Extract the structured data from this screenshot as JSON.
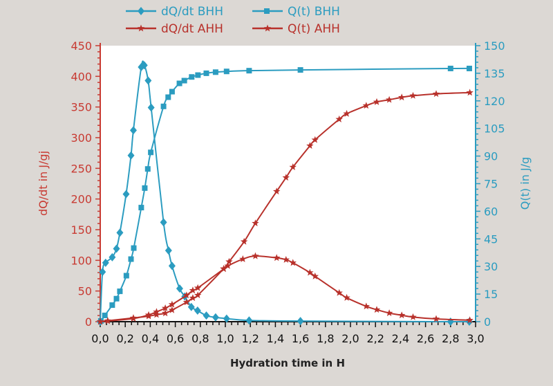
{
  "chart_data": {
    "type": "line",
    "xlabel": "Hydration time in H",
    "ylabel_left": "dQ/dt in J/gj",
    "ylabel_right": "Q(t) in J/g",
    "xlim": [
      0,
      3.0
    ],
    "ylim_left": [
      0,
      450
    ],
    "ylim_right": [
      0,
      150
    ],
    "x_ticks": [
      "0,0",
      "0,2",
      "0,4",
      "0,6",
      "0,8",
      "1,0",
      "1,2",
      "1,4",
      "1,6",
      "1,8",
      "2,0",
      "2,2",
      "2,4",
      "2,6",
      "2,8",
      "3,0"
    ],
    "y_left_ticks": [
      "0",
      "50",
      "100",
      "150",
      "200",
      "250",
      "300",
      "350",
      "400",
      "450"
    ],
    "y_right_ticks": [
      "0",
      "15",
      "30",
      "45",
      "60",
      "75",
      "90",
      "105",
      "120",
      "135",
      "150"
    ],
    "legend_placement": "top-center",
    "colors": {
      "bhh": "#2b9cc0",
      "ahh": "#b8312b",
      "left_axis": "#c83a32",
      "right_axis": "#2b9cc0"
    },
    "series": [
      {
        "name": "dQ/dt BHH",
        "axis": "left",
        "marker": "diamond",
        "color": "#2b9cc0",
        "x": [
          0.0,
          0.018,
          0.043,
          0.096,
          0.13,
          0.157,
          0.207,
          0.246,
          0.265,
          0.328,
          0.352,
          0.383,
          0.407,
          0.506,
          0.546,
          0.574,
          0.635,
          0.676,
          0.728,
          0.778,
          0.848,
          0.922,
          1.01,
          1.19,
          1.6,
          2.8,
          2.95
        ],
        "y": [
          0,
          81,
          96,
          105,
          119,
          145,
          208,
          271,
          312,
          415,
          418,
          393,
          349,
          162,
          116,
          91,
          54,
          41,
          24,
          18,
          10,
          7,
          5,
          2,
          1,
          0,
          0
        ]
      },
      {
        "name": "Q(t) BHH",
        "axis": "right",
        "marker": "square",
        "color": "#2b9cc0",
        "x": [
          0.005,
          0.037,
          0.096,
          0.13,
          0.157,
          0.209,
          0.246,
          0.268,
          0.328,
          0.356,
          0.38,
          0.404,
          0.506,
          0.543,
          0.574,
          0.633,
          0.672,
          0.731,
          0.781,
          0.848,
          0.922,
          1.01,
          1.19,
          1.6,
          2.8,
          2.95
        ],
        "y": [
          0.4,
          3.4,
          9,
          12.5,
          16.5,
          25,
          34,
          40,
          62,
          72.6,
          83,
          92,
          117,
          122,
          125,
          129.5,
          131,
          133,
          134,
          135,
          135.6,
          136,
          136.4,
          136.8,
          137.6,
          137.6
        ]
      },
      {
        "name": "dQ/dt AHH",
        "axis": "left",
        "marker": "star",
        "color": "#b8312b",
        "x": [
          0.0,
          0.06,
          0.265,
          0.387,
          0.45,
          0.52,
          0.574,
          0.69,
          0.74,
          0.78,
          0.987,
          1.02,
          1.14,
          1.24,
          1.41,
          1.485,
          1.54,
          1.676,
          1.717,
          1.91,
          1.97,
          2.126,
          2.21,
          2.31,
          2.41,
          2.5,
          2.685,
          2.954
        ],
        "y": [
          0,
          1,
          5,
          11,
          16,
          22,
          28,
          43,
          51,
          55,
          86,
          91,
          102,
          107,
          104,
          101,
          96,
          80,
          74,
          47,
          39,
          25,
          19.5,
          14,
          10.5,
          7.5,
          4.5,
          2.5
        ]
      },
      {
        "name": "Q(t) AHH",
        "axis": "right",
        "marker": "star",
        "color": "#b8312b",
        "x": [
          0.0,
          0.06,
          0.265,
          0.387,
          0.45,
          0.52,
          0.574,
          0.69,
          0.74,
          0.78,
          0.987,
          1.03,
          1.15,
          1.24,
          1.41,
          1.485,
          1.54,
          1.676,
          1.717,
          1.91,
          1.97,
          2.126,
          2.21,
          2.31,
          2.41,
          2.5,
          2.685,
          2.954
        ],
        "y": [
          0,
          0.5,
          2,
          3,
          3.8,
          4.6,
          6.3,
          10.6,
          12.9,
          14.4,
          28.8,
          32.6,
          43.5,
          53.5,
          70.8,
          78.3,
          84,
          95.6,
          98.8,
          110,
          113,
          117.4,
          119.4,
          120.6,
          121.9,
          122.8,
          123.8,
          124.5
        ]
      }
    ]
  }
}
